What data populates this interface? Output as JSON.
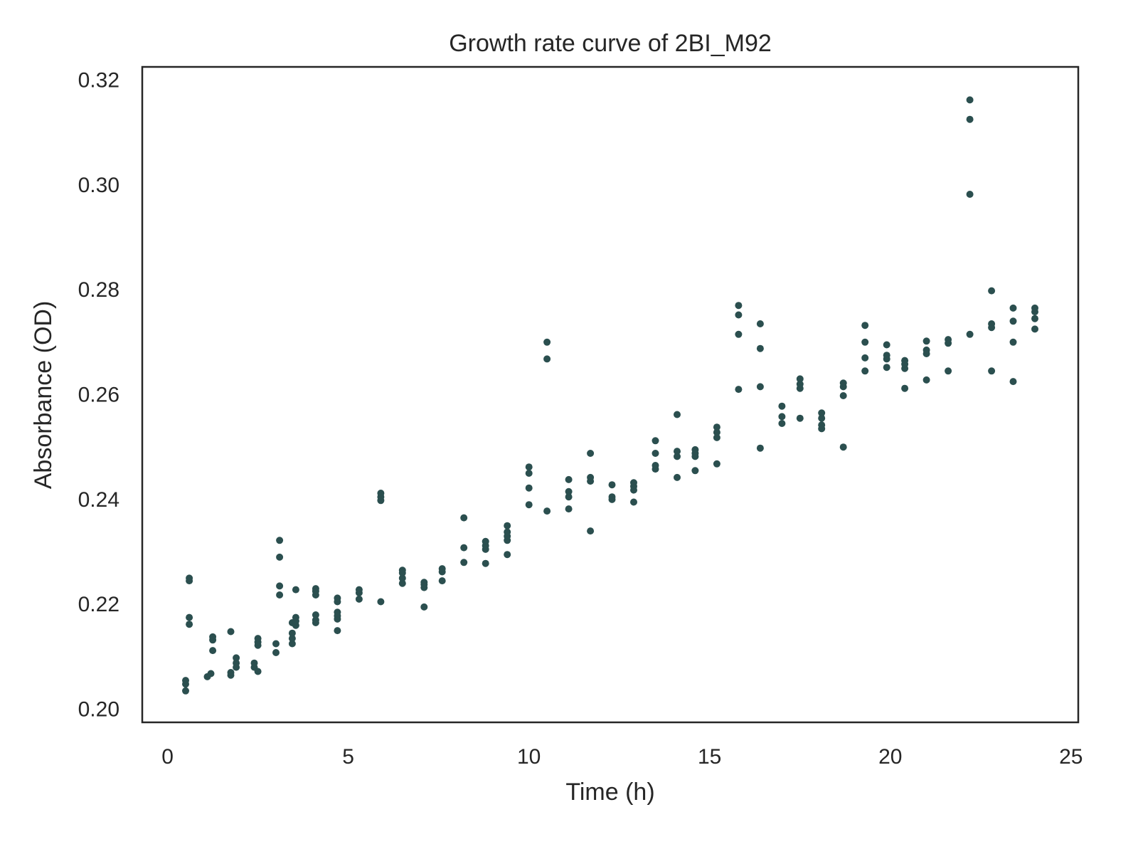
{
  "chart_data": {
    "type": "scatter",
    "title": "Growth rate curve of 2BI_M92",
    "xlabel": "Time (h)",
    "ylabel": "Absorbance (OD)",
    "xlim": [
      -0.7,
      25.2
    ],
    "ylim": [
      0.1975,
      0.3225
    ],
    "xticks": [
      0,
      5,
      10,
      15,
      20,
      25
    ],
    "xtick_labels": [
      "0",
      "5",
      "10",
      "15",
      "20",
      "25"
    ],
    "yticks": [
      0.2,
      0.22,
      0.24,
      0.26,
      0.28,
      0.3,
      0.32
    ],
    "ytick_labels": [
      "0.20",
      "0.22",
      "0.24",
      "0.26",
      "0.28",
      "0.30",
      "0.32"
    ],
    "grid": false,
    "legend": "none",
    "marker_color": "#2b4f4f",
    "series": [
      {
        "points": [
          [
            0.5,
            0.2035
          ],
          [
            0.5,
            0.2048
          ],
          [
            0.5,
            0.2055
          ],
          [
            0.6,
            0.2162
          ],
          [
            0.6,
            0.2175
          ],
          [
            0.6,
            0.2245
          ],
          [
            0.6,
            0.225
          ],
          [
            1.1,
            0.2062
          ],
          [
            1.2,
            0.2068
          ],
          [
            1.25,
            0.2112
          ],
          [
            1.25,
            0.2132
          ],
          [
            1.25,
            0.2138
          ],
          [
            1.75,
            0.2065
          ],
          [
            1.75,
            0.207
          ],
          [
            1.75,
            0.2148
          ],
          [
            1.9,
            0.208
          ],
          [
            1.9,
            0.2088
          ],
          [
            1.9,
            0.2098
          ],
          [
            2.4,
            0.208
          ],
          [
            2.4,
            0.2088
          ],
          [
            2.5,
            0.2072
          ],
          [
            2.5,
            0.2122
          ],
          [
            2.5,
            0.2128
          ],
          [
            2.5,
            0.2135
          ],
          [
            3.0,
            0.2108
          ],
          [
            3.0,
            0.2125
          ],
          [
            3.1,
            0.2218
          ],
          [
            3.1,
            0.2235
          ],
          [
            3.1,
            0.229
          ],
          [
            3.1,
            0.2322
          ],
          [
            3.45,
            0.2125
          ],
          [
            3.45,
            0.2135
          ],
          [
            3.45,
            0.2145
          ],
          [
            3.45,
            0.2165
          ],
          [
            3.55,
            0.216
          ],
          [
            3.55,
            0.2168
          ],
          [
            3.55,
            0.2175
          ],
          [
            3.55,
            0.2228
          ],
          [
            4.1,
            0.2165
          ],
          [
            4.1,
            0.217
          ],
          [
            4.1,
            0.218
          ],
          [
            4.1,
            0.2218
          ],
          [
            4.1,
            0.2225
          ],
          [
            4.1,
            0.223
          ],
          [
            4.7,
            0.215
          ],
          [
            4.7,
            0.2172
          ],
          [
            4.7,
            0.2178
          ],
          [
            4.7,
            0.2185
          ],
          [
            4.7,
            0.2205
          ],
          [
            4.7,
            0.2212
          ],
          [
            5.3,
            0.221
          ],
          [
            5.3,
            0.2222
          ],
          [
            5.3,
            0.2228
          ],
          [
            5.9,
            0.2205
          ],
          [
            5.9,
            0.2398
          ],
          [
            5.9,
            0.2405
          ],
          [
            5.9,
            0.2412
          ],
          [
            6.5,
            0.224
          ],
          [
            6.5,
            0.225
          ],
          [
            6.5,
            0.226
          ],
          [
            6.5,
            0.2265
          ],
          [
            7.1,
            0.2195
          ],
          [
            7.1,
            0.2232
          ],
          [
            7.1,
            0.2238
          ],
          [
            7.1,
            0.2242
          ],
          [
            7.6,
            0.2245
          ],
          [
            7.6,
            0.2262
          ],
          [
            7.6,
            0.2268
          ],
          [
            8.2,
            0.228
          ],
          [
            8.2,
            0.2308
          ],
          [
            8.2,
            0.2365
          ],
          [
            8.8,
            0.2278
          ],
          [
            8.8,
            0.2305
          ],
          [
            8.8,
            0.2312
          ],
          [
            8.8,
            0.232
          ],
          [
            9.4,
            0.2295
          ],
          [
            9.4,
            0.2322
          ],
          [
            9.4,
            0.233
          ],
          [
            9.4,
            0.2338
          ],
          [
            9.4,
            0.235
          ],
          [
            10.0,
            0.239
          ],
          [
            10.0,
            0.2422
          ],
          [
            10.0,
            0.245
          ],
          [
            10.0,
            0.2462
          ],
          [
            10.5,
            0.2378
          ],
          [
            10.5,
            0.2668
          ],
          [
            10.5,
            0.27
          ],
          [
            11.1,
            0.2382
          ],
          [
            11.1,
            0.2405
          ],
          [
            11.1,
            0.2415
          ],
          [
            11.1,
            0.2438
          ],
          [
            11.7,
            0.234
          ],
          [
            11.7,
            0.2435
          ],
          [
            11.7,
            0.2442
          ],
          [
            11.7,
            0.2488
          ],
          [
            12.3,
            0.24
          ],
          [
            12.3,
            0.2405
          ],
          [
            12.3,
            0.2428
          ],
          [
            12.9,
            0.2395
          ],
          [
            12.9,
            0.2418
          ],
          [
            12.9,
            0.2425
          ],
          [
            12.9,
            0.2432
          ],
          [
            13.5,
            0.2458
          ],
          [
            13.5,
            0.2465
          ],
          [
            13.5,
            0.2488
          ],
          [
            13.5,
            0.2512
          ],
          [
            14.1,
            0.2442
          ],
          [
            14.1,
            0.2482
          ],
          [
            14.1,
            0.2492
          ],
          [
            14.1,
            0.2562
          ],
          [
            14.6,
            0.2455
          ],
          [
            14.6,
            0.2482
          ],
          [
            14.6,
            0.2488
          ],
          [
            14.6,
            0.2495
          ],
          [
            15.2,
            0.2468
          ],
          [
            15.2,
            0.2518
          ],
          [
            15.2,
            0.2528
          ],
          [
            15.2,
            0.2538
          ],
          [
            15.8,
            0.261
          ],
          [
            15.8,
            0.2715
          ],
          [
            15.8,
            0.2752
          ],
          [
            15.8,
            0.277
          ],
          [
            16.4,
            0.2498
          ],
          [
            16.4,
            0.2615
          ],
          [
            16.4,
            0.2688
          ],
          [
            16.4,
            0.2735
          ],
          [
            17.0,
            0.2545
          ],
          [
            17.0,
            0.2558
          ],
          [
            17.0,
            0.2578
          ],
          [
            17.5,
            0.2555
          ],
          [
            17.5,
            0.2612
          ],
          [
            17.5,
            0.262
          ],
          [
            17.5,
            0.263
          ],
          [
            18.1,
            0.2535
          ],
          [
            18.1,
            0.2542
          ],
          [
            18.1,
            0.2555
          ],
          [
            18.1,
            0.2565
          ],
          [
            18.7,
            0.25
          ],
          [
            18.7,
            0.2598
          ],
          [
            18.7,
            0.2615
          ],
          [
            18.7,
            0.2622
          ],
          [
            19.3,
            0.2645
          ],
          [
            19.3,
            0.267
          ],
          [
            19.3,
            0.27
          ],
          [
            19.3,
            0.2732
          ],
          [
            19.9,
            0.2652
          ],
          [
            19.9,
            0.2668
          ],
          [
            19.9,
            0.2675
          ],
          [
            19.9,
            0.2695
          ],
          [
            20.4,
            0.2612
          ],
          [
            20.4,
            0.265
          ],
          [
            20.4,
            0.2658
          ],
          [
            20.4,
            0.2665
          ],
          [
            21.0,
            0.2628
          ],
          [
            21.0,
            0.2678
          ],
          [
            21.0,
            0.2685
          ],
          [
            21.0,
            0.2702
          ],
          [
            21.6,
            0.2645
          ],
          [
            21.6,
            0.2698
          ],
          [
            21.6,
            0.2705
          ],
          [
            22.2,
            0.2715
          ],
          [
            22.2,
            0.2982
          ],
          [
            22.2,
            0.3125
          ],
          [
            22.2,
            0.3162
          ],
          [
            22.8,
            0.2645
          ],
          [
            22.8,
            0.2728
          ],
          [
            22.8,
            0.2735
          ],
          [
            22.8,
            0.2798
          ],
          [
            23.4,
            0.2625
          ],
          [
            23.4,
            0.27
          ],
          [
            23.4,
            0.274
          ],
          [
            23.4,
            0.2765
          ],
          [
            24.0,
            0.2725
          ],
          [
            24.0,
            0.2745
          ],
          [
            24.0,
            0.2758
          ],
          [
            24.0,
            0.2765
          ]
        ]
      }
    ]
  }
}
